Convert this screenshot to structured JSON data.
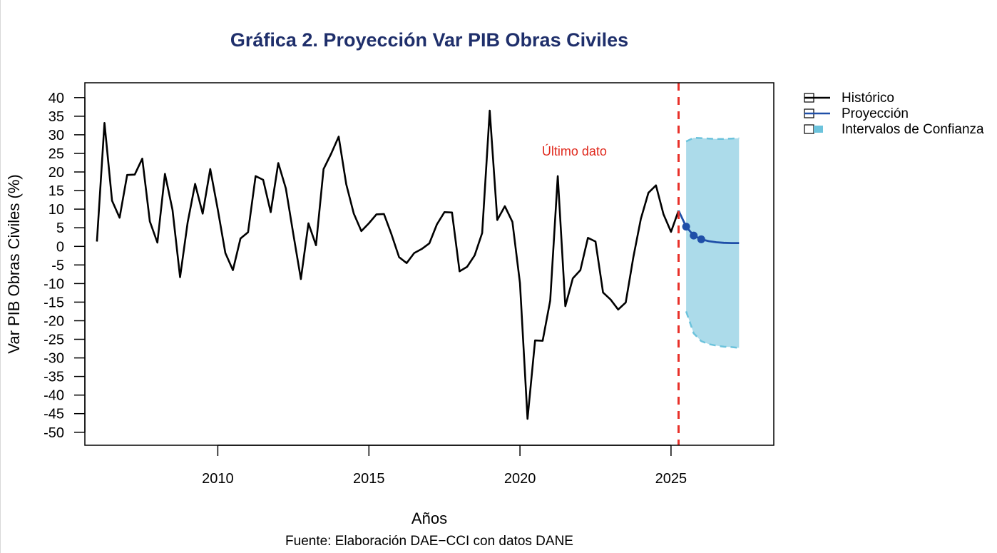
{
  "colors": {
    "title": "#1f2f6b",
    "historic": "#000000",
    "projection": "#1f4fa8",
    "confidence_fill": "#acdbea",
    "confidence_edge": "#6cc3dc",
    "last_data_line": "#e8312a",
    "annotation": "#e02a1e"
  },
  "chart_data": {
    "type": "line",
    "title": "Gráfica 2. Proyección Var PIB Obras Civiles",
    "xlabel": "Años",
    "ylabel": "Var PIB Obras Civiles (%)",
    "caption": "Fuente: Elaboración DAE−CCI con datos DANE",
    "xlim": [
      2005.6,
      2028.4
    ],
    "ylim": [
      -53.5,
      44.0
    ],
    "x_ticks": [
      2010,
      2015,
      2020,
      2025
    ],
    "y_ticks": [
      40,
      35,
      30,
      25,
      20,
      15,
      10,
      5,
      0,
      -5,
      -10,
      -15,
      -20,
      -25,
      -30,
      -35,
      -40,
      -45,
      -50
    ],
    "legend": {
      "position": "top-right",
      "entries": [
        {
          "key": "historic",
          "label": "Histórico"
        },
        {
          "key": "projection",
          "label": "Proyección"
        },
        {
          "key": "confidence",
          "label": "Intervalos de Confianza"
        }
      ]
    },
    "annotation": {
      "text": "Último dato",
      "x": 2021.8,
      "y": 25
    },
    "last_data_x": 2025.25,
    "series": [
      {
        "name": "Histórico",
        "x": [
          2006.0,
          2006.25,
          2006.5,
          2006.75,
          2007.0,
          2007.25,
          2007.5,
          2007.75,
          2008.0,
          2008.25,
          2008.5,
          2008.75,
          2009.0,
          2009.25,
          2009.5,
          2009.75,
          2010.0,
          2010.25,
          2010.5,
          2010.75,
          2011.0,
          2011.25,
          2011.5,
          2011.75,
          2012.0,
          2012.25,
          2012.5,
          2012.75,
          2013.0,
          2013.25,
          2013.5,
          2013.75,
          2014.0,
          2014.25,
          2014.5,
          2014.75,
          2015.0,
          2015.25,
          2015.5,
          2015.75,
          2016.0,
          2016.25,
          2016.5,
          2016.75,
          2017.0,
          2017.25,
          2017.5,
          2017.75,
          2018.0,
          2018.25,
          2018.5,
          2018.75,
          2019.0,
          2019.25,
          2019.5,
          2019.75,
          2020.0,
          2020.25,
          2020.5,
          2020.75,
          2021.0,
          2021.25,
          2021.5,
          2021.75,
          2022.0,
          2022.25,
          2022.5,
          2022.75,
          2023.0,
          2023.25,
          2023.5,
          2023.75,
          2024.0,
          2024.25,
          2024.5,
          2024.75,
          2025.0,
          2025.25
        ],
        "values": [
          1.3,
          33.2,
          12.3,
          7.7,
          19.2,
          19.3,
          23.6,
          6.7,
          1.0,
          19.5,
          9.8,
          -8.3,
          6.4,
          16.8,
          8.8,
          20.8,
          9.9,
          -1.8,
          -6.4,
          2.1,
          3.8,
          18.9,
          17.9,
          9.2,
          22.4,
          15.6,
          3.3,
          -8.8,
          6.2,
          0.3,
          20.8,
          24.9,
          29.5,
          16.7,
          8.8,
          4.1,
          6.2,
          8.6,
          8.7,
          3.2,
          -2.9,
          -4.5,
          -1.8,
          -0.7,
          0.8,
          5.9,
          9.2,
          9.1,
          -6.7,
          -5.5,
          -2.4,
          3.6,
          36.5,
          7.1,
          10.8,
          6.6,
          -9.9,
          -46.4,
          -25.3,
          -25.4,
          -14.6,
          18.9,
          -16.1,
          -8.6,
          -6.4,
          2.3,
          1.3,
          -12.4,
          -14.3,
          -17.0,
          -15.1,
          -3.0,
          7.4,
          14.4,
          16.4,
          8.6,
          3.9,
          9.6
        ]
      },
      {
        "name": "Proyección",
        "x": [
          2025.25,
          2025.5,
          2025.75,
          2026.0,
          2026.25,
          2026.5,
          2026.75,
          2027.0,
          2027.25
        ],
        "values": [
          9.6,
          5.3,
          2.9,
          1.9,
          1.4,
          1.1,
          0.95,
          0.9,
          0.9
        ],
        "markers_x": [
          2025.5,
          2025.75,
          2026.0
        ],
        "markers_y": [
          5.3,
          2.9,
          1.9
        ]
      },
      {
        "name": "Intervalos de Confianza",
        "x": [
          2025.5,
          2025.75,
          2026.0,
          2026.25,
          2026.5,
          2026.75,
          2027.0,
          2027.25
        ],
        "upper": [
          28.2,
          29.2,
          29.1,
          29.0,
          28.9,
          28.9,
          29.0,
          29.1
        ],
        "lower": [
          -17.5,
          -23.4,
          -25.5,
          -26.3,
          -26.7,
          -27.0,
          -27.1,
          -27.3
        ]
      }
    ]
  }
}
